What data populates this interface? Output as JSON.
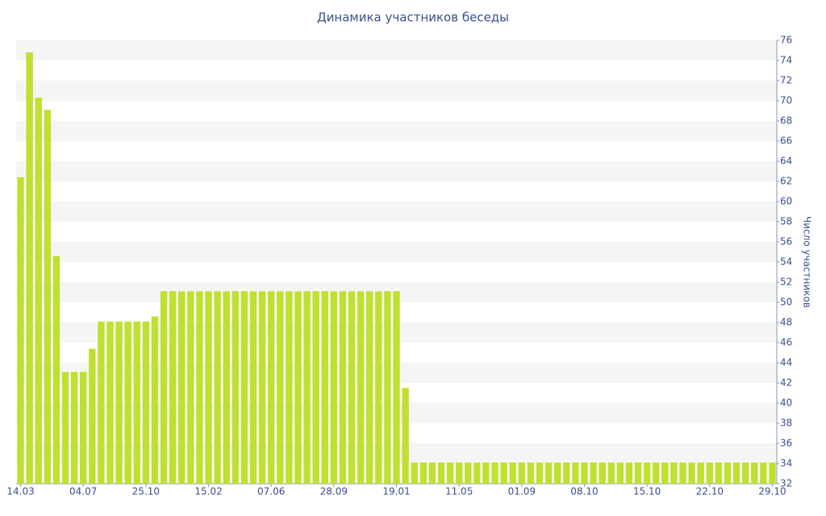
{
  "chart_data": {
    "type": "bar",
    "title": "Динамика участников беседы",
    "y_axis_label": "Число участников",
    "categories": [
      "14.03",
      null,
      null,
      null,
      null,
      null,
      null,
      "04.07",
      null,
      null,
      null,
      null,
      null,
      null,
      "25.10",
      null,
      null,
      null,
      null,
      null,
      null,
      "15.02",
      null,
      null,
      null,
      null,
      null,
      null,
      "07.06",
      null,
      null,
      null,
      null,
      null,
      null,
      "28.09",
      null,
      null,
      null,
      null,
      null,
      null,
      "19.01",
      null,
      null,
      null,
      null,
      null,
      null,
      "11.05",
      null,
      null,
      null,
      null,
      null,
      null,
      "01.09",
      null,
      null,
      null,
      null,
      null,
      null,
      "08.10",
      null,
      null,
      null,
      null,
      null,
      null,
      "15.10",
      null,
      null,
      null,
      null,
      null,
      null,
      "22.10",
      null,
      null,
      null,
      null,
      null,
      null,
      "29.10"
    ],
    "values": [
      62.4,
      74.8,
      70.3,
      69.1,
      54.6,
      43.1,
      43.1,
      43.1,
      45.4,
      48.1,
      48.1,
      48.1,
      48.1,
      48.1,
      48.1,
      48.6,
      51.1,
      51.1,
      51.1,
      51.1,
      51.1,
      51.1,
      51.1,
      51.1,
      51.1,
      51.1,
      51.1,
      51.1,
      51.1,
      51.1,
      51.1,
      51.1,
      51.1,
      51.1,
      51.1,
      51.1,
      51.1,
      51.1,
      51.1,
      51.1,
      51.1,
      51.1,
      51.1,
      41.5,
      34.1,
      34.1,
      34.1,
      34.1,
      34.1,
      34.1,
      34.1,
      34.1,
      34.1,
      34.1,
      34.1,
      34.1,
      34.1,
      34.1,
      34.1,
      34.1,
      34.1,
      34.1,
      34.1,
      34.1,
      34.1,
      34.1,
      34.1,
      34.1,
      34.1,
      34.1,
      34.1,
      34.1,
      34.1,
      34.1,
      34.1,
      34.1,
      34.1,
      34.1,
      34.1,
      34.1,
      34.1,
      34.1,
      34.1,
      34.1,
      34.1
    ],
    "color": "#bfe030",
    "ylim": [
      32,
      76
    ],
    "yticks": [
      32,
      34,
      36,
      38,
      40,
      42,
      44,
      46,
      48,
      50,
      52,
      54,
      56,
      58,
      60,
      62,
      64,
      66,
      68,
      70,
      72,
      74,
      76
    ],
    "grid": true
  }
}
